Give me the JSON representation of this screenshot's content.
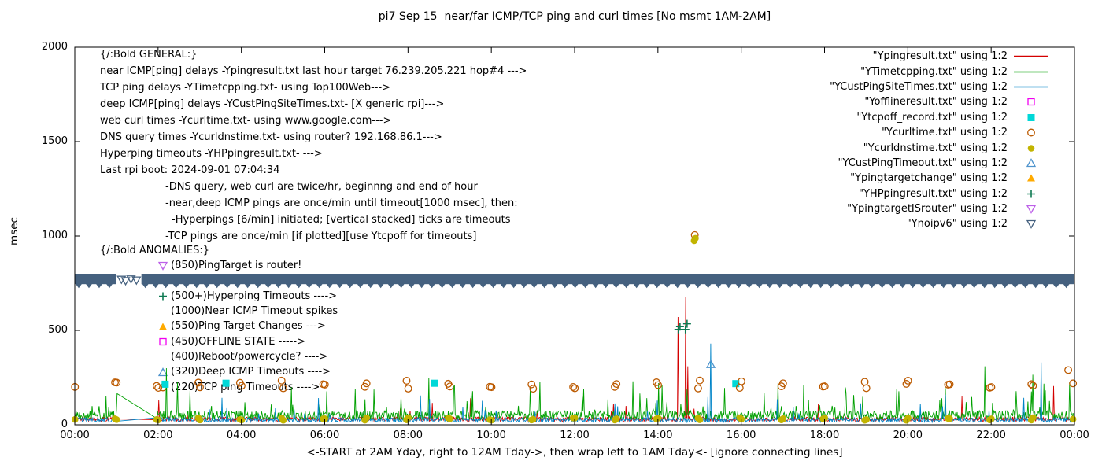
{
  "chart_data": {
    "type": "line+scatter",
    "title": "pi7 Sep 15  near/far ICMP/TCP ping and curl times [No msmt 1AM-2AM]",
    "xlabel": "<-START at 2AM Yday, right to 12AM Tday->, then wrap left to 1AM Tday<- [ignore connecting lines]",
    "ylabel": "msec",
    "x_unit": "hours",
    "xlim": [
      0,
      24
    ],
    "ylim": [
      0,
      2000
    ],
    "grid": false,
    "legend_position": "top-right-inside",
    "x_tick_hours": [
      0,
      2,
      4,
      6,
      8,
      10,
      12,
      14,
      16,
      18,
      20,
      22,
      24
    ],
    "x_tick_labels": [
      "00:00",
      "02:00",
      "04:00",
      "06:00",
      "08:00",
      "10:00",
      "12:00",
      "14:00",
      "16:00",
      "18:00",
      "20:00",
      "22:00",
      "00:00"
    ],
    "y_ticks": [
      0,
      500,
      1000,
      1500,
      2000
    ],
    "no_measurement_gap_hours": [
      1.03,
      1.95
    ],
    "legend": [
      {
        "label": "\"Ypingresult.txt\" using 1:2",
        "sample": "line",
        "color": "#d40000"
      },
      {
        "label": "\"YTimetcpping.txt\" using 1:2",
        "sample": "line",
        "color": "#00a000"
      },
      {
        "label": "\"YCustPingSiteTimes.txt\" using 1:2",
        "sample": "line",
        "color": "#0084c8"
      },
      {
        "label": "\"Yofflineresult.txt\" using 1:2",
        "sample": "square-open",
        "color": "#f000f0"
      },
      {
        "label": "\"Ytcpoff_record.txt\" using 1:2",
        "sample": "square-filled",
        "color": "#00d8d8"
      },
      {
        "label": "\"Ycurltime.txt\" using 1:2",
        "sample": "circle-open",
        "color": "#bc5a00"
      },
      {
        "label": "\"Ycurldnstime.txt\" using 1:2",
        "sample": "circle-filled",
        "color": "#c2b400"
      },
      {
        "label": "\"YCustPingTimeout.txt\" using 1:2",
        "sample": "triangle-open",
        "color": "#4f94cd"
      },
      {
        "label": "\"Ypingtargetchange\" using 1:2",
        "sample": "triangle-filled",
        "color": "#ffaa00"
      },
      {
        "label": "\"YHPpingresult.txt\" using 1:2",
        "sample": "plus",
        "color": "#0e7a52"
      },
      {
        "label": "\"YpingtargetISrouter\" using 1:2",
        "sample": "triangle-down-open",
        "color": "#bd60e8"
      },
      {
        "label": "\"Ynoipv6\" using 1:2",
        "sample": "triangle-down-open",
        "color": "#45617f"
      }
    ],
    "series": [
      {
        "name": "Ypingresult.txt",
        "style": "line",
        "color": "#d40000",
        "baseline": [
          18,
          42
        ],
        "spike_prob": 0.012,
        "spike_range": [
          60,
          150
        ],
        "spikes": [
          [
            14.49,
            571
          ],
          [
            14.66,
            675
          ],
          [
            14.72,
            310
          ],
          [
            21.3,
            150
          ],
          [
            23.5,
            205
          ]
        ]
      },
      {
        "name": "YTimetcpping.txt",
        "style": "line",
        "color": "#00a000",
        "baseline": [
          25,
          75
        ],
        "spike_prob": 0.055,
        "spike_range": [
          80,
          230
        ],
        "spikes": [
          [
            1.03,
            165
          ],
          [
            2.2,
            300
          ],
          [
            5.2,
            200
          ],
          [
            8.5,
            250
          ],
          [
            13.4,
            230
          ],
          [
            17.5,
            210
          ],
          [
            21.85,
            310
          ],
          [
            23.0,
            265
          ]
        ]
      },
      {
        "name": "YCustPingSiteTimes.txt",
        "style": "line",
        "color": "#0084c8",
        "baseline": [
          14,
          38
        ],
        "spike_prob": 0.02,
        "spike_range": [
          50,
          150
        ],
        "spikes": [
          [
            8.3,
            155
          ],
          [
            15.27,
            430
          ],
          [
            20.9,
            160
          ],
          [
            23.2,
            330
          ]
        ]
      },
      {
        "name": "Yofflineresult.txt",
        "style": "square-open",
        "color": "#f000f0",
        "points": []
      },
      {
        "name": "Ytcpoff_record.txt",
        "style": "square-filled",
        "color": "#00d8d8",
        "points": [
          [
            2.17,
            215
          ],
          [
            3.63,
            220
          ],
          [
            8.64,
            220
          ],
          [
            15.87,
            218
          ]
        ]
      },
      {
        "name": "Ycurltime.txt",
        "style": "circle-open",
        "color": "#bc5a00",
        "pattern": "hourly-pairs",
        "value_range": [
          190,
          235
        ],
        "extra_points": [
          [
            14.885,
            1005
          ],
          [
            23.85,
            290
          ]
        ]
      },
      {
        "name": "Ycurldnstime.txt",
        "style": "circle-filled",
        "color": "#c2b400",
        "pattern": "hourly-pairs",
        "value_range": [
          24,
          38
        ],
        "extra_points": [
          [
            14.87,
            975
          ],
          [
            14.9,
            988
          ]
        ]
      },
      {
        "name": "YCustPingTimeout.txt",
        "style": "triangle-open",
        "color": "#4f94cd",
        "points": [
          [
            15.27,
            320
          ]
        ]
      },
      {
        "name": "Ypingtargetchange",
        "style": "triangle-filled",
        "color": "#ffaa00",
        "points": []
      },
      {
        "name": "YHPpingresult.txt",
        "style": "plus",
        "color": "#0e7a52",
        "points": [
          [
            14.49,
            505
          ],
          [
            14.53,
            520
          ],
          [
            14.66,
            505
          ],
          [
            14.7,
            535
          ]
        ]
      },
      {
        "name": "YpingtargetISrouter",
        "style": "triangle-down-open",
        "color": "#bd60e8",
        "points": []
      },
      {
        "name": "Ynoipv6",
        "style": "band",
        "color": "#45617f",
        "band_msec": [
          745,
          800
        ],
        "segments": [
          [
            0,
            1.0
          ],
          [
            1.6,
            24
          ]
        ],
        "scatter": [
          [
            1.12,
            770
          ],
          [
            1.22,
            763
          ],
          [
            1.35,
            772
          ],
          [
            1.48,
            766
          ]
        ]
      }
    ],
    "annotations": {
      "general": [
        {
          "indent": 0,
          "text": "{/:Bold GENERAL:}"
        },
        {
          "indent": 0,
          "text": "near ICMP[ping] delays -Ypingresult.txt last hour target 76.239.205.221 hop#4 --->"
        },
        {
          "indent": 0,
          "text": "TCP ping delays -YTimetcpping.txt- using Top100Web--->"
        },
        {
          "indent": 0,
          "text": "deep ICMP[ping] delays -YCustPingSiteTimes.txt- [X generic rpi]--->"
        },
        {
          "indent": 0,
          "text": "web curl times -Ycurltime.txt- using www.google.com--->"
        },
        {
          "indent": 0,
          "text": "DNS query times -Ycurldnstime.txt- using router? 192.168.86.1--->"
        },
        {
          "indent": 0,
          "text": "Hyperping timeouts -YHPpingresult.txt- --->"
        },
        {
          "indent": 0,
          "text": "Last rpi boot: 2024-09-01 07:04:34"
        },
        {
          "indent": 1,
          "text": "-DNS query, web curl are twice/hr, beginnng and end of hour"
        },
        {
          "indent": 1,
          "text": "-near,deep ICMP pings are once/min until timeout[1000 msec], then:"
        },
        {
          "indent": 2,
          "text": "-Hyperpings [6/min] initiated; [vertical stacked] ticks are timeouts"
        },
        {
          "indent": 1,
          "text": "-TCP pings are once/min [if plotted][use Ytcpoff for timeouts]"
        }
      ],
      "anomalies": [
        {
          "header": true,
          "marker": null,
          "color": null,
          "text": "{/:Bold ANOMALIES:}"
        },
        {
          "header": false,
          "marker": "triangle-down-open",
          "color": "#bd60e8",
          "text": "(850)PingTarget is router!"
        },
        {
          "header": false,
          "marker": null,
          "color": null,
          "text": ""
        },
        {
          "header": false,
          "marker": "plus",
          "color": "#0e7a52",
          "text": "(500+)Hyperping Timeouts ---->"
        },
        {
          "header": false,
          "marker": null,
          "color": null,
          "text": "(1000)Near ICMP Timeout spikes"
        },
        {
          "header": false,
          "marker": "triangle-filled",
          "color": "#ffaa00",
          "text": "(550)Ping Target Changes --->"
        },
        {
          "header": false,
          "marker": "square-open",
          "color": "#f000f0",
          "text": "(450)OFFLINE STATE ----->"
        },
        {
          "header": false,
          "marker": null,
          "color": null,
          "text": "(400)Reboot/powercycle? ---->"
        },
        {
          "header": false,
          "marker": "triangle-open",
          "color": "#4f94cd",
          "text": "(320)Deep ICMP Timeouts ---->"
        },
        {
          "header": false,
          "marker": "circle-open",
          "color": "#bc5a00",
          "text": "(220)TCP ping Timeouts ---->"
        }
      ]
    }
  }
}
